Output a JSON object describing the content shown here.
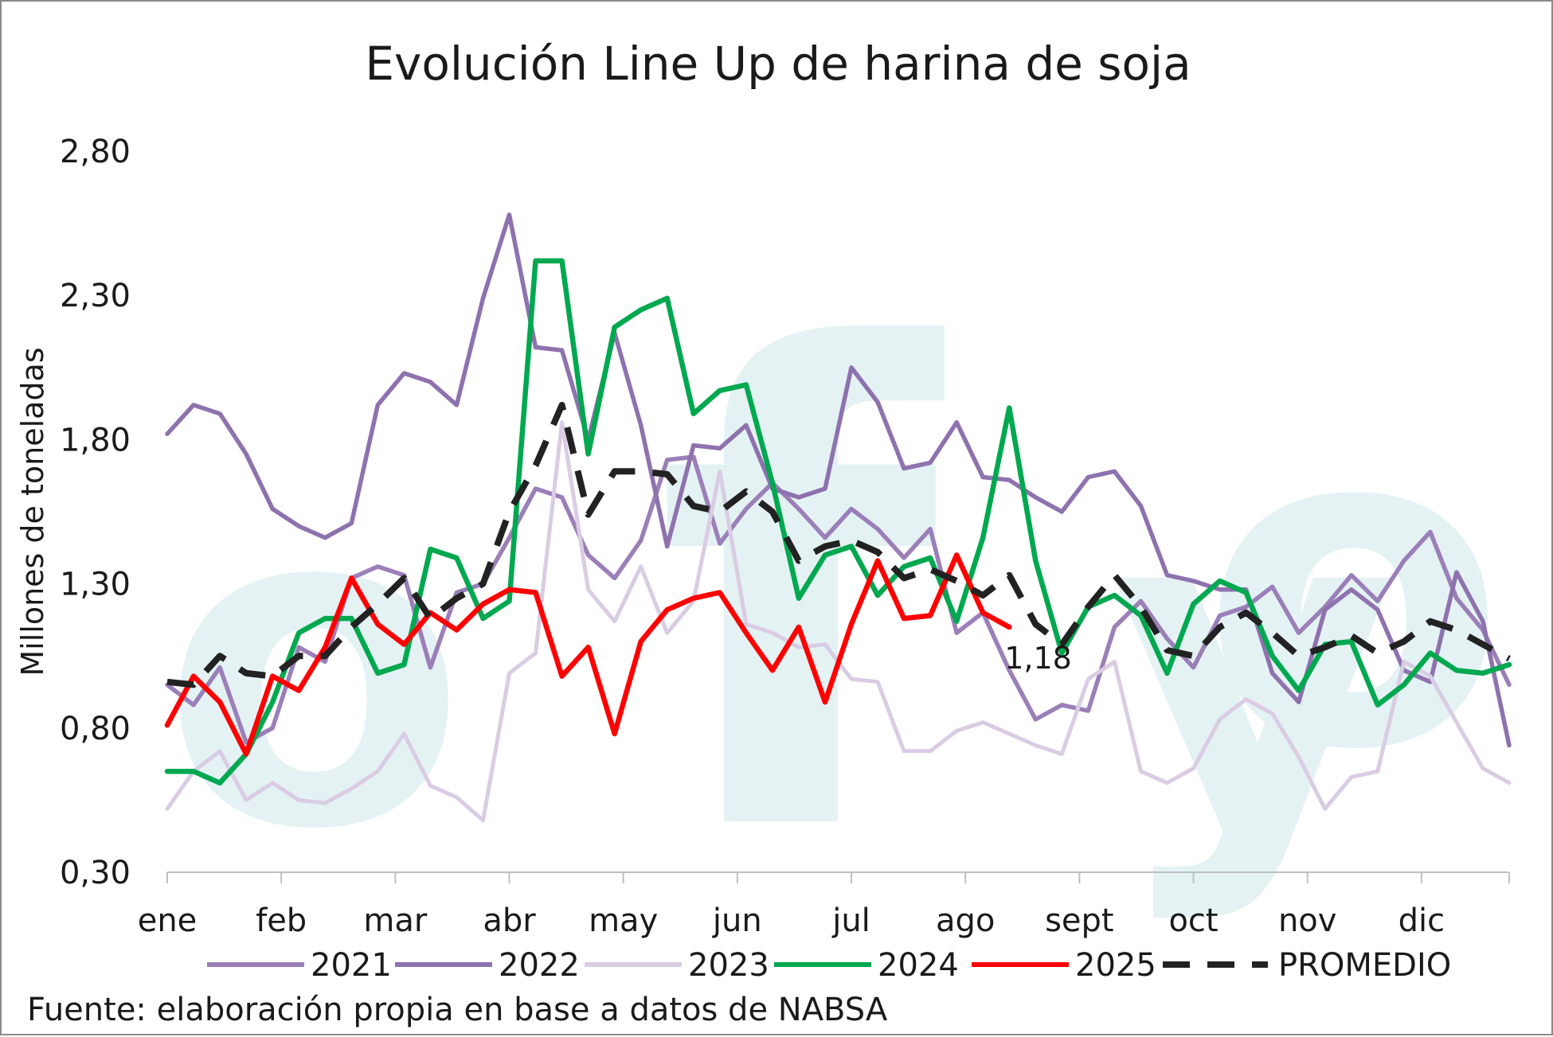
{
  "colors": {
    "2021": "#9B7FB8",
    "2022": "#8E72AE",
    "2023": "#D9CCE3",
    "2024": "#00A84F",
    "2025": "#FF0000",
    "PROMEDIO": "#222222",
    "watermark": "#E4F2F4"
  },
  "watermark": {
    "text": "ofyo"
  },
  "source": "Fuente: elaboración propia en base a datos de NABSA",
  "chart_data": {
    "type": "line",
    "title": "Evolución Line Up de harina de soja",
    "ylabel": "Millones de toneladas",
    "xlabel": "",
    "ylim": [
      0.3,
      2.8
    ],
    "yticks": [
      0.3,
      0.8,
      1.3,
      1.8,
      2.3,
      2.8
    ],
    "ytick_labels": [
      "0,30",
      "0,80",
      "1,30",
      "1,80",
      "2,30",
      "2,80"
    ],
    "x_unit": "week",
    "x_range": [
      1,
      52
    ],
    "months": [
      "ene",
      "feb",
      "mar",
      "abr",
      "may",
      "jun",
      "jul",
      "ago",
      "sept",
      "oct",
      "nov",
      "dic"
    ],
    "legend": "bottom",
    "grid": false,
    "series": [
      {
        "name": "2021",
        "width": 5.5,
        "dash": "",
        "values": [
          0.95,
          0.88,
          1.01,
          0.75,
          0.8,
          1.08,
          1.03,
          1.32,
          1.36,
          1.33,
          1.01,
          1.27,
          1.3,
          1.46,
          1.63,
          1.6,
          1.4,
          1.32,
          1.45,
          1.73,
          1.74,
          1.44,
          1.56,
          1.65,
          1.56,
          1.46,
          1.56,
          1.49,
          1.39,
          1.49,
          1.13,
          1.2,
          1.0,
          0.83,
          0.88,
          0.86,
          1.15,
          1.24,
          1.11,
          1.01,
          1.19,
          1.22,
          1.29,
          1.13,
          1.22,
          1.33,
          1.24,
          1.38,
          1.48,
          1.25,
          1.14,
          0.95
        ]
      },
      {
        "name": "2022",
        "width": 5.5,
        "dash": "",
        "values": [
          1.82,
          1.92,
          1.89,
          1.75,
          1.56,
          1.5,
          1.46,
          1.51,
          1.92,
          2.03,
          2.0,
          1.92,
          2.29,
          2.58,
          2.12,
          2.11,
          1.8,
          2.17,
          1.85,
          1.43,
          1.78,
          1.77,
          1.85,
          1.63,
          1.6,
          1.63,
          2.05,
          1.93,
          1.7,
          1.72,
          1.86,
          1.67,
          1.66,
          1.6,
          1.55,
          1.67,
          1.69,
          1.57,
          1.33,
          1.31,
          1.28,
          1.28,
          0.99,
          0.89,
          1.21,
          1.28,
          1.21,
          1.0,
          0.96,
          1.34,
          1.17,
          0.74
        ]
      },
      {
        "name": "2023",
        "width": 5,
        "dash": "",
        "values": [
          0.52,
          0.65,
          0.72,
          0.55,
          0.61,
          0.55,
          0.54,
          0.59,
          0.65,
          0.78,
          0.6,
          0.56,
          0.48,
          0.99,
          1.06,
          1.86,
          1.28,
          1.17,
          1.36,
          1.13,
          1.24,
          1.69,
          1.16,
          1.13,
          1.08,
          1.09,
          0.97,
          0.96,
          0.72,
          0.72,
          0.79,
          0.82,
          0.78,
          0.74,
          0.71,
          0.97,
          1.03,
          0.65,
          0.61,
          0.66,
          0.83,
          0.9,
          0.85,
          0.7,
          0.52,
          0.63,
          0.65,
          1.03,
          0.98,
          0.82,
          0.66,
          0.61
        ]
      },
      {
        "name": "2024",
        "width": 6.5,
        "dash": "",
        "values": [
          0.65,
          0.65,
          0.61,
          0.71,
          0.89,
          1.13,
          1.18,
          1.18,
          0.99,
          1.02,
          1.42,
          1.39,
          1.18,
          1.24,
          2.42,
          2.42,
          1.75,
          2.19,
          2.25,
          2.29,
          1.89,
          1.97,
          1.99,
          1.65,
          1.25,
          1.4,
          1.43,
          1.26,
          1.36,
          1.39,
          1.17,
          1.46,
          1.91,
          1.38,
          1.06,
          1.22,
          1.26,
          1.19,
          0.99,
          1.23,
          1.31,
          1.27,
          1.05,
          0.93,
          1.09,
          1.1,
          0.88,
          0.95,
          1.06,
          1.0,
          0.99,
          1.02
        ]
      },
      {
        "name": "2025",
        "width": 6.5,
        "dash": "",
        "values": [
          0.81,
          0.98,
          0.89,
          0.71,
          0.98,
          0.93,
          1.08,
          1.32,
          1.16,
          1.09,
          1.2,
          1.14,
          1.23,
          1.28,
          1.27,
          0.98,
          1.08,
          0.78,
          1.1,
          1.21,
          1.25,
          1.27,
          1.13,
          1.0,
          1.15,
          0.89,
          1.16,
          1.38,
          1.18,
          1.19,
          1.4,
          1.2,
          1.15
        ]
      },
      {
        "name": "PROMEDIO",
        "width": 8,
        "dash": "34 22",
        "values": [
          0.96,
          0.95,
          1.05,
          0.99,
          0.98,
          1.05,
          1.05,
          1.15,
          1.23,
          1.32,
          1.18,
          1.25,
          1.3,
          1.55,
          1.71,
          1.92,
          1.54,
          1.69,
          1.69,
          1.68,
          1.57,
          1.55,
          1.62,
          1.55,
          1.38,
          1.43,
          1.45,
          1.41,
          1.32,
          1.35,
          1.31,
          1.26,
          1.33,
          1.16,
          1.09,
          1.22,
          1.33,
          1.22,
          1.07,
          1.05,
          1.15,
          1.2,
          1.13,
          1.05,
          1.08,
          1.12,
          1.06,
          1.1,
          1.17,
          1.14,
          1.09,
          1.04
        ]
      }
    ],
    "annotations": [
      {
        "series": "2025",
        "text": "1,18"
      }
    ]
  }
}
